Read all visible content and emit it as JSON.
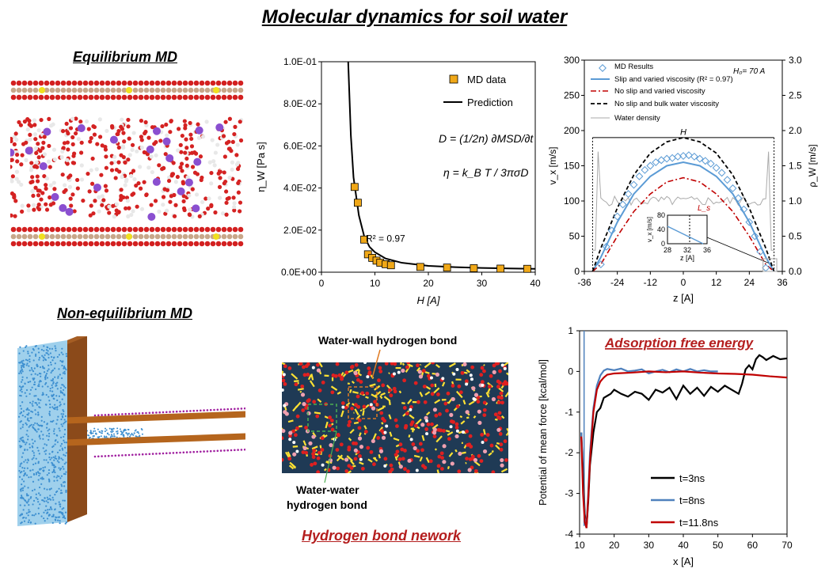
{
  "title": "Molecular dynamics for soil water",
  "sections": {
    "eq_md": "Equilibrium MD",
    "neq_md": "Non-equilibrium MD",
    "hbond_network": "Hydrogen bond nework",
    "water_wall": "Water-wall hydrogen bond",
    "water_water_1": "Water-water",
    "water_water_2": "hydrogen bond"
  },
  "chart_data": [
    {
      "type": "scatter",
      "ylabel": "η_W [Pa s]",
      "xlabel": "H [A]",
      "xlim": [
        0,
        40
      ],
      "ylim": [
        0,
        0.1
      ],
      "xticks": [
        "0",
        "10",
        "20",
        "30",
        "40"
      ],
      "yticks": [
        "0.0E+00",
        "2.0E-02",
        "4.0E-02",
        "6.0E-02",
        "8.0E-02",
        "1.0E-01"
      ],
      "legend": [
        "MD data",
        "Prediction"
      ],
      "annotation": "R² = 0.97",
      "equations": [
        "D = (1/2n) ∂MSD/∂t",
        "η = k_B T / 3πσD"
      ],
      "series": [
        {
          "name": "MD data",
          "x": [
            6.2,
            6.8,
            8.0,
            8.7,
            9.5,
            10.3,
            11.0,
            12.0,
            13.0,
            18.5,
            23.5,
            28.5,
            33.5,
            38.5
          ],
          "y": [
            0.0405,
            0.033,
            0.0155,
            0.0085,
            0.0068,
            0.0055,
            0.0045,
            0.0038,
            0.0033,
            0.0025,
            0.0022,
            0.0019,
            0.0017,
            0.0016
          ]
        },
        {
          "name": "Prediction",
          "x": [
            5.0,
            5.5,
            6.0,
            7,
            8,
            9,
            10,
            12,
            15,
            20,
            25,
            30,
            35,
            40
          ],
          "y": [
            0.1,
            0.065,
            0.045,
            0.027,
            0.017,
            0.012,
            0.0095,
            0.0065,
            0.0045,
            0.003,
            0.0024,
            0.002,
            0.0018,
            0.0016
          ]
        }
      ]
    },
    {
      "type": "line",
      "xlabel": "z [A]",
      "ylabel": "v_x [m/s]",
      "ylabel2": "ρ_W [m/s]",
      "xlim": [
        -36,
        36
      ],
      "ylim": [
        0,
        300
      ],
      "ylim2": [
        0,
        3.0
      ],
      "xticks": [
        "-36",
        "-24",
        "-12",
        "0",
        "12",
        "24",
        "36"
      ],
      "yticks": [
        "0",
        "50",
        "100",
        "150",
        "200",
        "250",
        "300"
      ],
      "yticks2": [
        "0.0",
        "0.5",
        "1.0",
        "1.5",
        "2.0",
        "2.5",
        "3.0"
      ],
      "legend": [
        "MD Results",
        "Slip and varied viscosity (R² = 0.97)",
        "No slip and varied viscosity",
        "No slip and bulk water viscosity",
        "Water density"
      ],
      "corner_label": "H₀= 70 A",
      "h_label": "H",
      "inset": {
        "xticks": [
          "28",
          "32",
          "36"
        ],
        "yticks": [
          "0",
          "40",
          "80"
        ],
        "ylabel": "v_x [m/s]",
        "xlabel": "z [A]",
        "label": "L_s"
      },
      "series": [
        {
          "name": "MD Results",
          "x": [
            -30,
            -28,
            -26,
            -24,
            -22,
            -20,
            -18,
            -16,
            -14,
            -12,
            -10,
            -8,
            -6,
            -4,
            -2,
            0,
            2,
            4,
            6,
            8,
            10,
            12,
            14,
            16,
            18,
            20,
            22,
            24,
            26,
            28,
            30
          ],
          "y": [
            10,
            35,
            58,
            78,
            95,
            110,
            123,
            135,
            144,
            150,
            155,
            158,
            160,
            161,
            163,
            164,
            165,
            163,
            160,
            157,
            153,
            147,
            140,
            130,
            118,
            104,
            88,
            70,
            50,
            28,
            5
          ]
        },
        {
          "name": "Slip and varied viscosity (R² = 0.97)",
          "x": [
            -33,
            -30,
            -24,
            -18,
            -12,
            -6,
            0,
            6,
            12,
            18,
            24,
            30,
            33
          ],
          "y": [
            0,
            20,
            70,
            110,
            135,
            150,
            155,
            150,
            135,
            110,
            70,
            20,
            0
          ]
        },
        {
          "name": "No slip and varied viscosity",
          "x": [
            -33,
            -30,
            -24,
            -18,
            -12,
            -6,
            0,
            6,
            12,
            18,
            24,
            30,
            33
          ],
          "y": [
            0,
            10,
            50,
            85,
            110,
            127,
            133,
            127,
            110,
            85,
            50,
            10,
            0
          ]
        },
        {
          "name": "No slip and bulk water viscosity",
          "x": [
            -33,
            -30,
            -24,
            -18,
            -12,
            -6,
            0,
            6,
            12,
            18,
            24,
            30,
            33
          ],
          "y": [
            0,
            33,
            90,
            137,
            168,
            184,
            190,
            184,
            168,
            137,
            90,
            33,
            0
          ]
        }
      ]
    },
    {
      "type": "line",
      "title": "Adsorption free energy",
      "xlabel": "x [A]",
      "ylabel": "Potential of mean force [kcal/mol]",
      "xlim": [
        10,
        70
      ],
      "ylim": [
        -4,
        1
      ],
      "xticks": [
        "10",
        "20",
        "30",
        "40",
        "50",
        "60",
        "70"
      ],
      "yticks": [
        "-4",
        "-3",
        "-2",
        "-1",
        "0",
        "1"
      ],
      "series": [
        {
          "name": "t=3ns",
          "color": "#000000",
          "x": [
            10.5,
            11,
            11.5,
            12,
            12.5,
            13,
            14,
            15,
            16,
            17,
            18,
            19,
            20,
            22,
            24,
            26,
            28,
            30,
            32,
            34,
            36,
            38,
            40,
            42,
            44,
            46,
            48,
            50,
            52,
            54,
            56,
            57,
            58,
            59,
            60,
            61,
            62,
            63,
            64,
            66,
            68,
            70
          ],
          "y": [
            -1.5,
            -2.5,
            -3.5,
            -3.85,
            -3.2,
            -2.3,
            -1.5,
            -1.0,
            -0.9,
            -0.65,
            -0.6,
            -0.55,
            -0.45,
            -0.55,
            -0.62,
            -0.5,
            -0.55,
            -0.7,
            -0.45,
            -0.52,
            -0.4,
            -0.68,
            -0.35,
            -0.55,
            -0.4,
            -0.6,
            -0.38,
            -0.5,
            -0.35,
            -0.45,
            -0.55,
            -0.3,
            0.05,
            0.15,
            0.05,
            0.3,
            0.4,
            0.35,
            0.28,
            0.38,
            0.3,
            0.32
          ]
        },
        {
          "name": "t=8ns",
          "color": "#4f81bd",
          "x": [
            10.5,
            11,
            11.5,
            12,
            12.5,
            13,
            14,
            15,
            16,
            17,
            18,
            20,
            22,
            24,
            26,
            28,
            30,
            32,
            34,
            36,
            38,
            40,
            42,
            44,
            46,
            48,
            50
          ],
          "y": [
            -1.5,
            -2.8,
            -3.6,
            -3.82,
            -3.0,
            -2.0,
            -0.9,
            -0.35,
            -0.1,
            0.02,
            0.06,
            0.03,
            0.07,
            0.0,
            0.02,
            0.05,
            -0.05,
            0.0,
            0.04,
            -0.02,
            0.05,
            0.0,
            0.06,
            0.0,
            0.03,
            0.0,
            0.0
          ]
        },
        {
          "name": "t=11.8ns",
          "color": "#c00000",
          "x": [
            10.5,
            11,
            11.5,
            12,
            12.5,
            13,
            14,
            15,
            16,
            17,
            18,
            20,
            25,
            30,
            35,
            40,
            45,
            50,
            55,
            60,
            65,
            70
          ],
          "y": [
            -1.6,
            -3.0,
            -3.7,
            -3.85,
            -3.1,
            -2.2,
            -1.0,
            -0.45,
            -0.25,
            -0.15,
            -0.08,
            -0.05,
            -0.03,
            0.0,
            -0.02,
            0.0,
            -0.03,
            -0.05,
            -0.06,
            -0.08,
            -0.12,
            -0.15
          ]
        }
      ]
    }
  ]
}
